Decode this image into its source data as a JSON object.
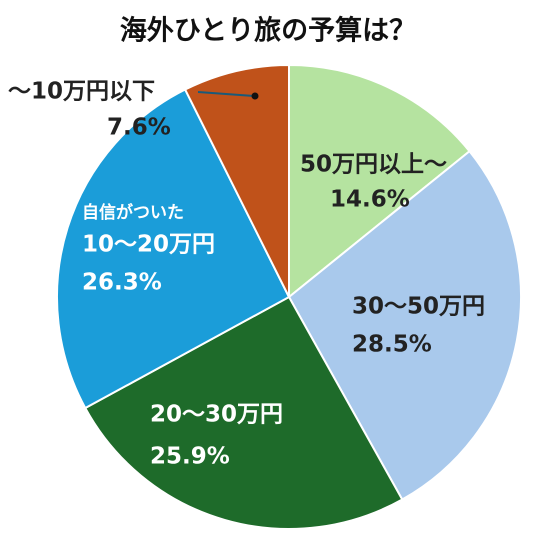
{
  "chart_data": {
    "type": "pie",
    "title": "海外ひとり旅の予算は？",
    "categories": [
      "50万円以上～",
      "30～50万円",
      "20～30万円",
      "10～20万円",
      "～10万円以下"
    ],
    "values": [
      14.6,
      28.5,
      25.9,
      26.3,
      7.6
    ],
    "value_labels": [
      "14.6%",
      "28.5%",
      "25.9%",
      "26.3%",
      "7.6%"
    ],
    "colors": [
      "#b5e3a0",
      "#a9c9ec",
      "#1e6b2a",
      "#1b9dd9",
      "#c0521a"
    ],
    "annotation": "自信がついた"
  }
}
